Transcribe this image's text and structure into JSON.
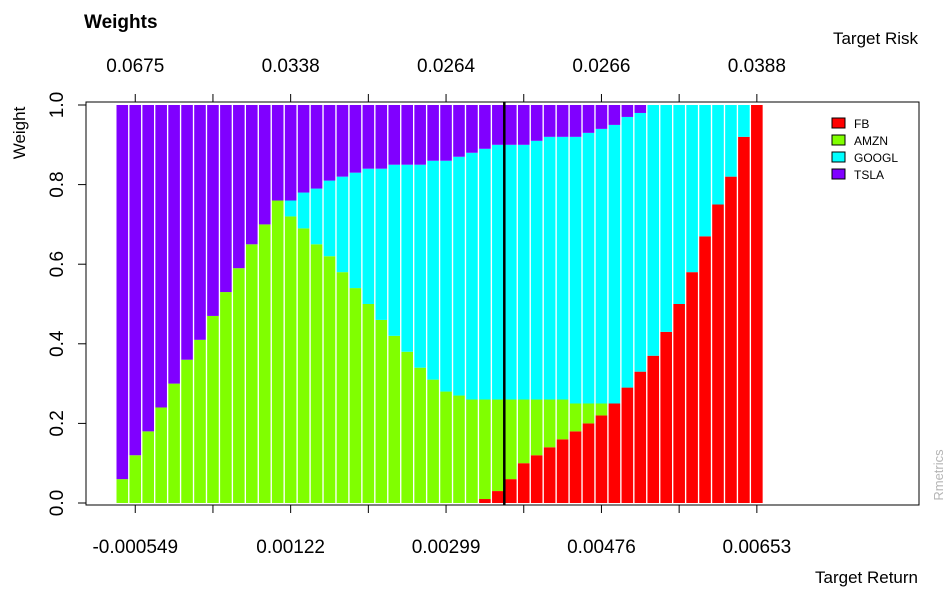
{
  "chart_data": {
    "type": "bar",
    "stacked": true,
    "title": "Weights",
    "xlabel": "Target Return",
    "ylabel": "Weight",
    "x2label": "Target Risk",
    "credit": "Rmetrics",
    "ylim": [
      0,
      1
    ],
    "yticks": [
      "0.0",
      "0.2",
      "0.4",
      "0.6",
      "0.8",
      "1.0"
    ],
    "bottom_ticks": [
      "-0.000549",
      "0.00122",
      "0.00299",
      "0.00476",
      "0.00653"
    ],
    "top_ticks": [
      "0.0675",
      "0.0338",
      "0.0264",
      "0.0266",
      "0.0388"
    ],
    "n_points": 50,
    "marker_index": 30,
    "legend": {
      "position": "top-right",
      "entries": [
        "FB",
        "AMZN",
        "GOOGL",
        "TSLA"
      ]
    },
    "series": [
      {
        "name": "FB",
        "color": "#ff0000",
        "values": [
          0,
          0,
          0,
          0,
          0,
          0,
          0,
          0,
          0,
          0,
          0,
          0,
          0,
          0,
          0,
          0,
          0,
          0,
          0,
          0,
          0,
          0,
          0,
          0,
          0,
          0,
          0,
          0,
          0.01,
          0.03,
          0.06,
          0.1,
          0.12,
          0.14,
          0.16,
          0.18,
          0.2,
          0.22,
          0.25,
          0.29,
          0.33,
          0.37,
          0.43,
          0.5,
          0.58,
          0.67,
          0.75,
          0.82,
          0.92,
          1.0
        ]
      },
      {
        "name": "AMZN",
        "color": "#80ff00",
        "values": [
          0.06,
          0.12,
          0.18,
          0.24,
          0.3,
          0.36,
          0.41,
          0.47,
          0.53,
          0.59,
          0.65,
          0.7,
          0.76,
          0.72,
          0.69,
          0.65,
          0.62,
          0.58,
          0.54,
          0.5,
          0.46,
          0.42,
          0.38,
          0.34,
          0.31,
          0.28,
          0.27,
          0.26,
          0.25,
          0.23,
          0.2,
          0.16,
          0.14,
          0.12,
          0.1,
          0.07,
          0.05,
          0.03,
          0,
          0,
          0,
          0,
          0,
          0,
          0,
          0,
          0,
          0,
          0,
          0
        ]
      },
      {
        "name": "GOOGL",
        "color": "#00ffff",
        "values": [
          0,
          0,
          0,
          0,
          0,
          0,
          0,
          0,
          0,
          0,
          0,
          0,
          0,
          0.04,
          0.09,
          0.14,
          0.19,
          0.24,
          0.29,
          0.34,
          0.38,
          0.43,
          0.47,
          0.51,
          0.55,
          0.58,
          0.6,
          0.62,
          0.63,
          0.64,
          0.64,
          0.64,
          0.65,
          0.66,
          0.66,
          0.67,
          0.68,
          0.69,
          0.7,
          0.68,
          0.65,
          0.63,
          0.57,
          0.5,
          0.42,
          0.33,
          0.25,
          0.18,
          0.08,
          0
        ]
      },
      {
        "name": "TSLA",
        "color": "#8000ff",
        "values": [
          0.94,
          0.88,
          0.82,
          0.76,
          0.7,
          0.64,
          0.59,
          0.53,
          0.47,
          0.41,
          0.35,
          0.3,
          0.24,
          0.24,
          0.22,
          0.21,
          0.19,
          0.18,
          0.17,
          0.16,
          0.16,
          0.15,
          0.15,
          0.15,
          0.14,
          0.14,
          0.13,
          0.12,
          0.11,
          0.1,
          0.1,
          0.1,
          0.09,
          0.08,
          0.08,
          0.08,
          0.07,
          0.06,
          0.05,
          0.03,
          0.02,
          0,
          0,
          0,
          0,
          0,
          0,
          0,
          0,
          0
        ]
      }
    ]
  }
}
